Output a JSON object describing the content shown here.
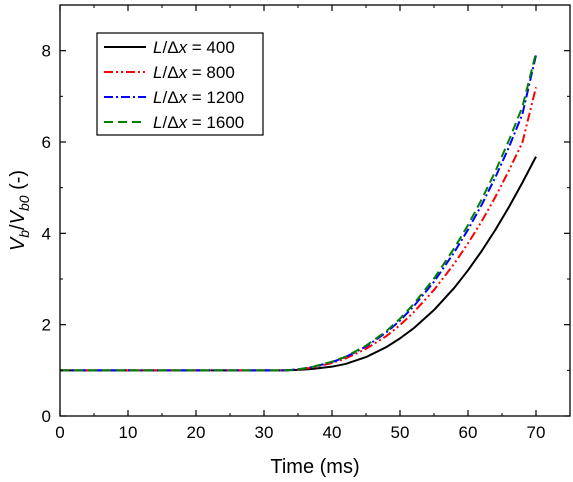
{
  "chart_data": {
    "type": "line",
    "title": "",
    "xlabel": "Time (ms)",
    "ylabel": {
      "base1": "V",
      "sub1": "b",
      "slash": "/",
      "base2": "V",
      "sub2": "b0",
      "unit": " (-)"
    },
    "xlim": [
      0,
      75
    ],
    "ylim": [
      0,
      9
    ],
    "xticks": [
      0,
      10,
      20,
      30,
      40,
      50,
      60,
      70
    ],
    "yticks": [
      0,
      2,
      4,
      6,
      8
    ],
    "grid": false,
    "legend_position": "top-left",
    "series": [
      {
        "name": {
          "var": "L",
          "rest": "/Δ",
          "var2": "x",
          "value": " = 400"
        },
        "color": "#000000",
        "dash": "solid",
        "x": [
          0,
          10,
          20,
          30,
          33,
          35,
          37,
          40,
          42,
          45,
          48,
          50,
          52,
          55,
          58,
          60,
          62,
          64,
          66,
          68,
          70
        ],
        "y": [
          1.0,
          1.0,
          1.0,
          1.0,
          1.0,
          1.01,
          1.03,
          1.08,
          1.14,
          1.29,
          1.51,
          1.7,
          1.92,
          2.32,
          2.81,
          3.19,
          3.61,
          4.07,
          4.57,
          5.11,
          5.68
        ]
      },
      {
        "name": {
          "var": "L",
          "rest": "/Δ",
          "var2": "x",
          "value": " = 800"
        },
        "color": "#ff0000",
        "dash": "dash-dot-dot",
        "x": [
          0,
          10,
          20,
          30,
          33,
          35,
          37,
          40,
          42,
          45,
          48,
          50,
          52,
          55,
          58,
          60,
          62,
          64,
          66,
          68,
          70
        ],
        "y": [
          1.0,
          1.0,
          1.0,
          1.0,
          1.0,
          1.02,
          1.06,
          1.16,
          1.26,
          1.47,
          1.75,
          1.99,
          2.27,
          2.76,
          3.34,
          3.78,
          4.26,
          4.79,
          5.37,
          5.99,
          7.2
        ]
      },
      {
        "name": {
          "var": "L",
          "rest": "/Δ",
          "var2": "x",
          "value": " = 1200"
        },
        "color": "#0000ff",
        "dash": "dash-dot",
        "x": [
          0,
          10,
          20,
          30,
          33,
          35,
          37,
          40,
          42,
          45,
          48,
          50,
          52,
          55,
          58,
          60,
          62,
          64,
          66,
          68,
          70
        ],
        "y": [
          1.0,
          1.0,
          1.0,
          1.0,
          1.0,
          1.02,
          1.07,
          1.18,
          1.29,
          1.52,
          1.83,
          2.09,
          2.4,
          2.94,
          3.59,
          4.08,
          4.62,
          5.22,
          5.88,
          6.61,
          7.9
        ]
      },
      {
        "name": {
          "var": "L",
          "rest": "/Δ",
          "var2": "x",
          "value": " = 1600"
        },
        "color": "#008000",
        "dash": "dashed",
        "x": [
          0,
          10,
          20,
          30,
          33,
          35,
          37,
          40,
          42,
          45,
          48,
          50,
          52,
          55,
          58,
          60,
          62,
          64,
          66,
          68,
          70
        ],
        "y": [
          1.0,
          1.0,
          1.0,
          1.0,
          1.0,
          1.02,
          1.07,
          1.19,
          1.3,
          1.54,
          1.86,
          2.13,
          2.45,
          3.01,
          3.68,
          4.18,
          4.74,
          5.35,
          6.03,
          6.77,
          7.95
        ]
      }
    ]
  }
}
